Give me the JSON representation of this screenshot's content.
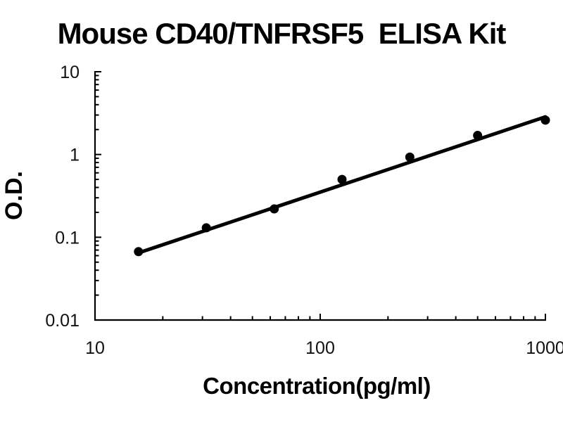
{
  "chart_data": {
    "type": "line",
    "title": "Mouse CD40/TNFRSF5  ELISA Kit",
    "xlabel": "Concentration(pg/ml)",
    "ylabel": "O.D.",
    "x_scale": "log",
    "y_scale": "log",
    "xlim": [
      10,
      1000
    ],
    "ylim": [
      0.01,
      10
    ],
    "x_ticks": [
      10,
      100,
      1000
    ],
    "y_ticks": [
      10,
      1,
      0.1,
      0.01
    ],
    "grid": false,
    "legend": "none",
    "line_color": "#000000",
    "marker_color": "#000000",
    "series": [
      {
        "name": "standard-points",
        "type": "scatter",
        "x": [
          15.6,
          31.2,
          62.5,
          125,
          250,
          500,
          1000
        ],
        "y": [
          0.067,
          0.13,
          0.22,
          0.5,
          0.93,
          1.7,
          2.6
        ]
      },
      {
        "name": "fit-line",
        "type": "line",
        "x": [
          15.4,
          1000
        ],
        "y": [
          0.064,
          2.85
        ]
      }
    ]
  }
}
